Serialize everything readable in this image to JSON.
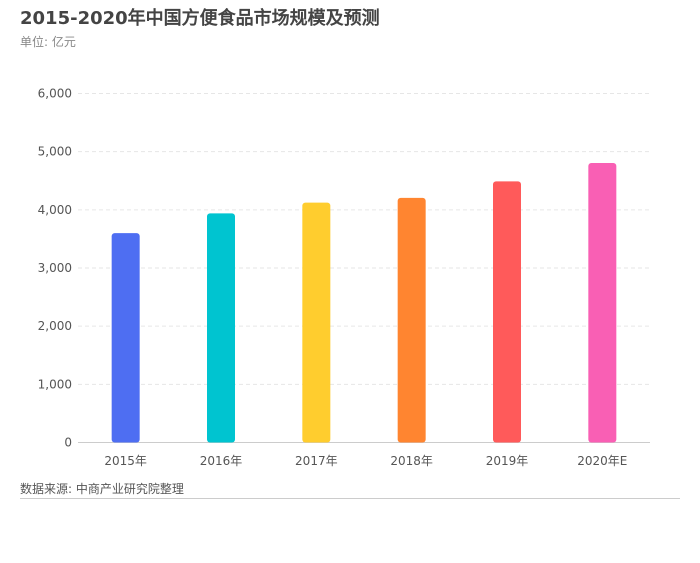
{
  "chart_data": {
    "type": "bar",
    "title": "2015-2020年中国方便食品市场规模及预测",
    "subtitle": "单位: 亿元",
    "source": "数据来源: 中商产业研究院整理",
    "categories": [
      "2015年",
      "2016年",
      "2017年",
      "2018年",
      "2019年",
      "2020年E"
    ],
    "values": [
      3600,
      3940,
      4125,
      4205,
      4490,
      4805
    ],
    "colors": [
      "#4e6ef2",
      "#00c4d0",
      "#ffcd2e",
      "#ff8530",
      "#ff5a5a",
      "#f95fb4"
    ],
    "ylim": [
      0,
      6000
    ],
    "yticks": [
      "0",
      "1,000",
      "2,000",
      "3,000",
      "4,000",
      "5,000",
      "6,000"
    ],
    "grid": true,
    "xlabel": "",
    "ylabel": ""
  }
}
